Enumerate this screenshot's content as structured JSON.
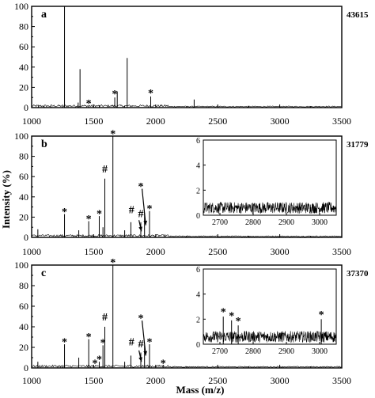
{
  "chart_data": {
    "type": "line",
    "title": "",
    "ylabel": "Intensity (%)",
    "xlabel": "Mass (m/z)",
    "shared_x_ticks": [
      "1000",
      "1500",
      "2000",
      "2500",
      "3000",
      "3500"
    ],
    "y_ticks": [
      "0",
      "20",
      "40",
      "60",
      "80",
      "100"
    ],
    "inset_x_ticks": [
      "2700",
      "2800",
      "2900",
      "3000"
    ],
    "inset_y_ticks": [
      "0",
      "2",
      "4",
      "6"
    ],
    "panels": [
      {
        "label": "a",
        "count": "43615",
        "xlim": [
          1000,
          3500
        ],
        "ylim": [
          0,
          100
        ],
        "peaks": [
          {
            "x": 1055,
            "y": 2
          },
          {
            "x": 1100,
            "y": 2
          },
          {
            "x": 1155,
            "y": 1.5
          },
          {
            "x": 1265,
            "y": 100
          },
          {
            "x": 1375,
            "y": 5
          },
          {
            "x": 1390,
            "y": 38
          },
          {
            "x": 1460,
            "y": 2
          },
          {
            "x": 1545,
            "y": 2
          },
          {
            "x": 1670,
            "y": 10
          },
          {
            "x": 1690,
            "y": 16
          },
          {
            "x": 1770,
            "y": 49
          },
          {
            "x": 1960,
            "y": 11
          },
          {
            "x": 2310,
            "y": 8
          }
        ],
        "annotations": [
          {
            "x": 1460,
            "y": 8,
            "text": "*"
          },
          {
            "x": 1670,
            "y": 17,
            "text": "*"
          },
          {
            "x": 1960,
            "y": 18,
            "text": "*"
          }
        ]
      },
      {
        "label": "b",
        "count": "31779",
        "xlim": [
          1000,
          3500
        ],
        "ylim": [
          0,
          100
        ],
        "peaks": [
          {
            "x": 1050,
            "y": 8
          },
          {
            "x": 1265,
            "y": 23
          },
          {
            "x": 1380,
            "y": 7
          },
          {
            "x": 1460,
            "y": 16
          },
          {
            "x": 1545,
            "y": 21
          },
          {
            "x": 1575,
            "y": 10
          },
          {
            "x": 1590,
            "y": 58
          },
          {
            "x": 1655,
            "y": 100
          },
          {
            "x": 1750,
            "y": 7
          },
          {
            "x": 1800,
            "y": 15
          },
          {
            "x": 1880,
            "y": 15
          },
          {
            "x": 1910,
            "y": 24
          },
          {
            "x": 1950,
            "y": 26
          }
        ],
        "annotations": [
          {
            "x": 1265,
            "y": 29,
            "text": "*"
          },
          {
            "x": 1460,
            "y": 22,
            "text": "*"
          },
          {
            "x": 1545,
            "y": 27,
            "text": "*"
          },
          {
            "x": 1590,
            "y": 64,
            "text": "#"
          },
          {
            "x": 1655,
            "y": 106,
            "text": "*"
          },
          {
            "x": 1805,
            "y": 24,
            "text": "#"
          },
          {
            "x": 1880,
            "y": 20,
            "text": "#"
          },
          {
            "x": 1950,
            "y": 32,
            "text": "*"
          },
          {
            "x": 1880,
            "y": 54,
            "text": "*"
          }
        ],
        "arrows": [
          {
            "x1": 1890,
            "y1": 48,
            "x2": 1920,
            "y2": 12
          },
          {
            "x1": 1865,
            "y1": 17,
            "x2": 1885,
            "y2": 6
          }
        ],
        "inset": {
          "xlim": [
            2650,
            3050
          ],
          "ylim": [
            0,
            6
          ],
          "noise_level": 0.7,
          "peaks": []
        }
      },
      {
        "label": "c",
        "count": "37370",
        "xlim": [
          1000,
          3500
        ],
        "ylim": [
          0,
          100
        ],
        "peaks": [
          {
            "x": 1050,
            "y": 6
          },
          {
            "x": 1265,
            "y": 23
          },
          {
            "x": 1380,
            "y": 10
          },
          {
            "x": 1460,
            "y": 28
          },
          {
            "x": 1545,
            "y": 6
          },
          {
            "x": 1575,
            "y": 22
          },
          {
            "x": 1590,
            "y": 40
          },
          {
            "x": 1655,
            "y": 100
          },
          {
            "x": 1750,
            "y": 6
          },
          {
            "x": 1800,
            "y": 12
          },
          {
            "x": 1880,
            "y": 15
          },
          {
            "x": 1910,
            "y": 22
          },
          {
            "x": 1950,
            "y": 23
          },
          {
            "x": 2060,
            "y": 3
          }
        ],
        "annotations": [
          {
            "x": 1265,
            "y": 29,
            "text": "*"
          },
          {
            "x": 1460,
            "y": 34,
            "text": "*"
          },
          {
            "x": 1510,
            "y": 8,
            "text": "*"
          },
          {
            "x": 1545,
            "y": 12,
            "text": "*"
          },
          {
            "x": 1575,
            "y": 28,
            "text": "*"
          },
          {
            "x": 1590,
            "y": 46,
            "text": "#"
          },
          {
            "x": 1655,
            "y": 106,
            "text": "*"
          },
          {
            "x": 1805,
            "y": 22,
            "text": "#"
          },
          {
            "x": 1880,
            "y": 20,
            "text": "#"
          },
          {
            "x": 1950,
            "y": 29,
            "text": "*"
          },
          {
            "x": 2060,
            "y": 8,
            "text": "*"
          },
          {
            "x": 1880,
            "y": 52,
            "text": "*"
          }
        ],
        "arrows": [
          {
            "x1": 1890,
            "y1": 46,
            "x2": 1920,
            "y2": 12
          },
          {
            "x1": 1865,
            "y1": 17,
            "x2": 1885,
            "y2": 6
          }
        ],
        "inset": {
          "xlim": [
            2650,
            3050
          ],
          "ylim": [
            0,
            6
          ],
          "noise_level": 0.7,
          "peaks": [
            {
              "x": 2710,
              "y": 2.2
            },
            {
              "x": 2735,
              "y": 1.9
            },
            {
              "x": 2755,
              "y": 1.5
            },
            {
              "x": 3005,
              "y": 2.0
            }
          ],
          "annotations": [
            {
              "x": 2710,
              "y": 2.8,
              "text": "*"
            },
            {
              "x": 2735,
              "y": 2.5,
              "text": "*"
            },
            {
              "x": 2755,
              "y": 2.1,
              "text": "*"
            },
            {
              "x": 3005,
              "y": 2.6,
              "text": "*"
            }
          ]
        }
      }
    ]
  }
}
